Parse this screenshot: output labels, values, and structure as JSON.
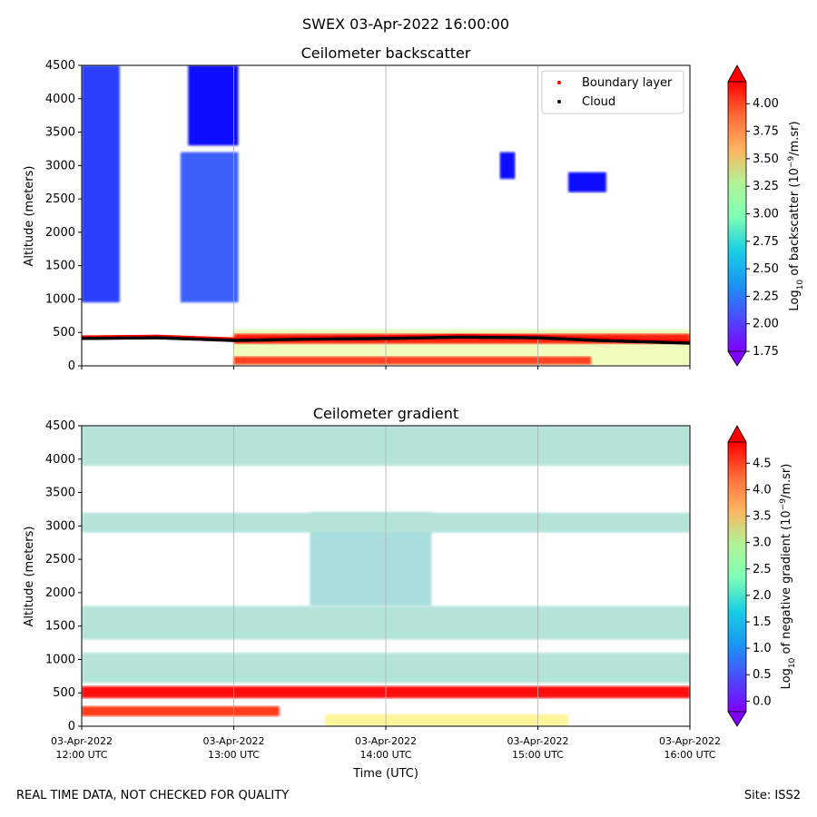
{
  "suptitle": "SWEX 03-Apr-2022 16:00:00",
  "footer_left": "REAL TIME DATA, NOT CHECKED FOR QUALITY",
  "footer_right": "Site: ISS2",
  "xlabel": "Time (UTC)",
  "x_tick_dates": [
    "03-Apr-2022",
    "03-Apr-2022",
    "03-Apr-2022",
    "03-Apr-2022",
    "03-Apr-2022"
  ],
  "x_tick_times": [
    "12:00 UTC",
    "13:00 UTC",
    "14:00 UTC",
    "15:00 UTC",
    "16:00 UTC"
  ],
  "chart_data": [
    {
      "type": "heatmap",
      "title": "Ceilometer backscatter",
      "xlabel": "Time (UTC)",
      "ylabel": "Altitude (meters)",
      "xlim_hours": [
        12,
        16
      ],
      "ylim": [
        0,
        4500
      ],
      "yticks": [
        0,
        500,
        1000,
        1500,
        2000,
        2500,
        3000,
        3500,
        4000,
        4500
      ],
      "colorbar": {
        "label": "Log10 of backscatter (10^-9/m.sr)",
        "range": [
          1.75,
          4.2
        ],
        "ticks": [
          "1.75",
          "2.00",
          "2.25",
          "2.50",
          "2.75",
          "3.00",
          "3.25",
          "3.50",
          "3.75",
          "4.00"
        ],
        "extend": "both"
      },
      "legend": {
        "placement": "top-right",
        "entries": [
          {
            "label": "Boundary layer",
            "color": "#ff0000"
          },
          {
            "label": "Cloud",
            "color": "#000000"
          }
        ]
      },
      "regions": [
        {
          "t0": 12.0,
          "t1": 12.25,
          "z0": 950,
          "z1": 4500,
          "value": 1.95
        },
        {
          "t0": 12.65,
          "t1": 13.03,
          "z0": 950,
          "z1": 3200,
          "value": 2.05
        },
        {
          "t0": 12.7,
          "t1": 13.03,
          "z0": 3300,
          "z1": 4500,
          "value": 1.8
        },
        {
          "t0": 13.0,
          "t1": 16.0,
          "z0": 0,
          "z1": 550,
          "value": 2.9
        },
        {
          "t0": 13.0,
          "t1": 16.0,
          "z0": 330,
          "z1": 480,
          "value": 4.1
        },
        {
          "t0": 13.0,
          "t1": 15.35,
          "z0": 20,
          "z1": 140,
          "value": 4.0
        },
        {
          "t0": 14.75,
          "t1": 14.85,
          "z0": 2800,
          "z1": 3200,
          "value": 1.8
        },
        {
          "t0": 15.2,
          "t1": 15.45,
          "z0": 2600,
          "z1": 2900,
          "value": 1.8
        }
      ],
      "boundary_layer": {
        "x": [
          12.0,
          12.5,
          13.0,
          13.5,
          14.0,
          14.5,
          15.0,
          15.4,
          15.7,
          16.0
        ],
        "y": [
          430,
          440,
          400,
          420,
          430,
          450,
          440,
          400,
          380,
          360
        ]
      },
      "cloud": {
        "x": [
          12.0,
          12.5,
          13.0,
          13.5,
          14.0,
          14.5,
          15.0,
          15.4,
          15.7,
          16.0
        ],
        "y": [
          410,
          420,
          380,
          400,
          410,
          430,
          420,
          380,
          360,
          340
        ]
      }
    },
    {
      "type": "heatmap",
      "title": "Ceilometer gradient",
      "xlabel": "Time (UTC)",
      "ylabel": "Altitude (meters)",
      "xlim_hours": [
        12,
        16
      ],
      "ylim": [
        0,
        4500
      ],
      "yticks": [
        0,
        500,
        1000,
        1500,
        2000,
        2500,
        3000,
        3500,
        4000,
        4500
      ],
      "colorbar": {
        "label": "Log10 of negative gradient (10^-9/m.sr)",
        "range": [
          -0.2,
          4.9
        ],
        "ticks": [
          "0.0",
          "0.5",
          "1.0",
          "1.5",
          "2.0",
          "2.5",
          "3.0",
          "3.5",
          "4.0",
          "4.5"
        ],
        "extend": "both"
      },
      "regions": [
        {
          "t0": 12.0,
          "t1": 16.0,
          "z0": 650,
          "z1": 1100,
          "value": 1.6
        },
        {
          "t0": 12.0,
          "t1": 16.0,
          "z0": 420,
          "z1": 600,
          "value": 4.8
        },
        {
          "t0": 12.0,
          "t1": 13.3,
          "z0": 150,
          "z1": 300,
          "value": 4.5
        },
        {
          "t0": 13.6,
          "t1": 15.2,
          "z0": 0,
          "z1": 180,
          "value": 2.8
        },
        {
          "t0": 12.0,
          "t1": 16.0,
          "z0": 1300,
          "z1": 1800,
          "value": 1.6
        },
        {
          "t0": 13.5,
          "t1": 14.3,
          "z0": 1800,
          "z1": 3200,
          "value": 1.5
        },
        {
          "t0": 12.0,
          "t1": 16.0,
          "z0": 2900,
          "z1": 3200,
          "value": 1.6
        },
        {
          "t0": 12.0,
          "t1": 16.0,
          "z0": 3900,
          "z1": 4500,
          "value": 1.6
        }
      ]
    }
  ]
}
